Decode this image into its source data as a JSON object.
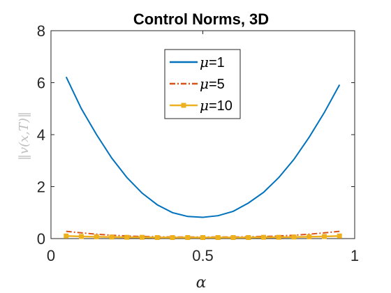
{
  "chart_data": {
    "type": "line",
    "title": "Control Norms, 3D",
    "xlabel": "α",
    "ylabel": "‖v(x,T)‖",
    "xlim": [
      0,
      1
    ],
    "ylim": [
      0,
      8
    ],
    "xticks": [
      0,
      0.5,
      1
    ],
    "xtick_labels": [
      "0",
      "0.5",
      "1"
    ],
    "yticks": [
      0,
      2,
      4,
      6,
      8
    ],
    "ytick_labels": [
      "0",
      "2",
      "4",
      "6",
      "8"
    ],
    "grid": false,
    "legend_position": "top-center",
    "x": [
      0.05,
      0.1,
      0.15,
      0.2,
      0.25,
      0.3,
      0.35,
      0.4,
      0.45,
      0.5,
      0.55,
      0.6,
      0.65,
      0.7,
      0.75,
      0.8,
      0.85,
      0.9,
      0.95
    ],
    "series": [
      {
        "name_symbol": "μ",
        "name_value": "=1",
        "color": "#0072BD",
        "style": "solid",
        "marker": false,
        "values": [
          6.22,
          5.0,
          4.0,
          3.1,
          2.35,
          1.75,
          1.3,
          1.0,
          0.85,
          0.82,
          0.88,
          1.05,
          1.37,
          1.78,
          2.35,
          3.05,
          3.9,
          4.85,
          5.92
        ]
      },
      {
        "name_symbol": "μ",
        "name_value": "=5",
        "color": "#D95319",
        "style": "dashdot",
        "marker": false,
        "values": [
          0.28,
          0.22,
          0.17,
          0.13,
          0.1,
          0.08,
          0.07,
          0.06,
          0.06,
          0.06,
          0.06,
          0.06,
          0.07,
          0.08,
          0.1,
          0.13,
          0.17,
          0.22,
          0.28
        ]
      },
      {
        "name_symbol": "μ",
        "name_value": "=10",
        "color": "#EDB120",
        "style": "solid",
        "marker": true,
        "values": [
          0.1,
          0.08,
          0.07,
          0.06,
          0.05,
          0.05,
          0.04,
          0.04,
          0.04,
          0.04,
          0.04,
          0.04,
          0.04,
          0.05,
          0.05,
          0.06,
          0.07,
          0.08,
          0.1
        ]
      }
    ]
  }
}
